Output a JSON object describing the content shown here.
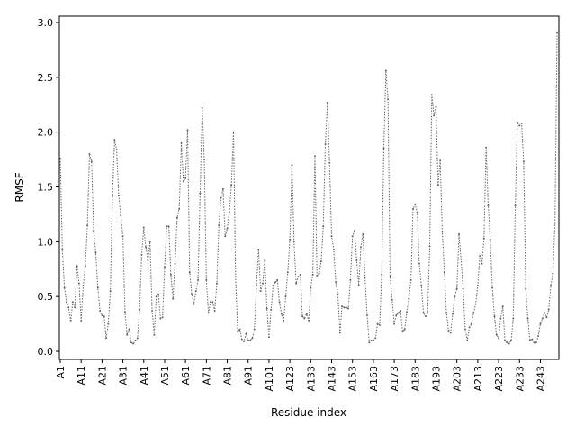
{
  "chart_data": {
    "type": "line",
    "xlabel": "Residue index",
    "ylabel": "RMSF",
    "ylim": [
      -0.1,
      3.05
    ],
    "y_ticks": [
      "0.0",
      "0.5",
      "1.0",
      "1.5",
      "2.0",
      "2.5",
      "3.0"
    ],
    "x_tick_labels": [
      "A1",
      "A11",
      "A21",
      "A31",
      "A41",
      "A51",
      "A61",
      "A71",
      "A81",
      "A91",
      "A101",
      "A123",
      "A133",
      "A143",
      "A153",
      "A163",
      "A173",
      "A183",
      "A193",
      "A203",
      "A213",
      "A223",
      "A233",
      "A243"
    ],
    "line_color": "#666666",
    "line_style": "dotted",
    "marker": "point",
    "series": [
      {
        "values": [
          1.76,
          0.93,
          0.58,
          0.45,
          0.4,
          0.28,
          0.45,
          0.4,
          0.78,
          0.62,
          0.28,
          0.6,
          0.78,
          1.15,
          1.8,
          1.73,
          1.1,
          0.9,
          0.58,
          0.37,
          0.33,
          0.32,
          0.12,
          0.25,
          0.55,
          1.42,
          1.93,
          1.84,
          1.42,
          1.24,
          1.05,
          0.36,
          0.15,
          0.2,
          0.08,
          0.07,
          0.1,
          0.12,
          0.38,
          0.88,
          1.13,
          0.95,
          0.83,
          1.0,
          0.37,
          0.15,
          0.5,
          0.52,
          0.3,
          0.31,
          0.77,
          1.14,
          1.14,
          0.7,
          0.48,
          0.8,
          1.22,
          1.3,
          1.9,
          1.55,
          1.58,
          2.02,
          0.72,
          0.52,
          0.43,
          0.55,
          0.65,
          1.44,
          2.22,
          1.75,
          0.65,
          0.35,
          0.45,
          0.45,
          0.37,
          0.62,
          1.15,
          1.4,
          1.48,
          1.05,
          1.12,
          1.27,
          1.52,
          2.0,
          0.68,
          0.18,
          0.2,
          0.11,
          0.09,
          0.16,
          0.1,
          0.1,
          0.12,
          0.2,
          0.6,
          0.93,
          0.55,
          0.62,
          0.83,
          0.39,
          0.13,
          0.38,
          0.6,
          0.63,
          0.65,
          0.45,
          0.34,
          0.28,
          0.5,
          0.72,
          1.02,
          1.7,
          1.0,
          0.62,
          0.68,
          0.7,
          0.32,
          0.3,
          0.34,
          0.28,
          0.58,
          0.7,
          1.78,
          0.69,
          0.71,
          0.82,
          1.14,
          1.89,
          2.27,
          1.72,
          1.05,
          0.93,
          0.63,
          0.52,
          0.17,
          0.41,
          0.4,
          0.4,
          0.39,
          0.65,
          1.05,
          1.1,
          0.83,
          0.6,
          0.95,
          1.07,
          0.67,
          0.33,
          0.08,
          0.1,
          0.1,
          0.12,
          0.25,
          0.24,
          0.7,
          1.85,
          2.56,
          2.3,
          0.68,
          0.47,
          0.25,
          0.33,
          0.35,
          0.37,
          0.18,
          0.2,
          0.36,
          0.48,
          0.65,
          1.3,
          1.34,
          1.27,
          0.8,
          0.6,
          0.35,
          0.32,
          0.35,
          0.96,
          2.34,
          2.15,
          2.23,
          1.52,
          1.74,
          1.09,
          0.72,
          0.35,
          0.19,
          0.17,
          0.34,
          0.5,
          0.57,
          1.07,
          0.84,
          0.57,
          0.2,
          0.1,
          0.22,
          0.25,
          0.35,
          0.43,
          0.6,
          0.87,
          0.8,
          1.03,
          1.86,
          1.33,
          1.02,
          0.58,
          0.32,
          0.15,
          0.12,
          0.3,
          0.41,
          0.1,
          0.08,
          0.07,
          0.1,
          0.3,
          1.33,
          2.09,
          2.06,
          2.08,
          1.73,
          0.57,
          0.3,
          0.1,
          0.11,
          0.08,
          0.08,
          0.14,
          0.25,
          0.3,
          0.35,
          0.31,
          0.38,
          0.6,
          0.71,
          1.17,
          2.91
        ]
      }
    ]
  }
}
